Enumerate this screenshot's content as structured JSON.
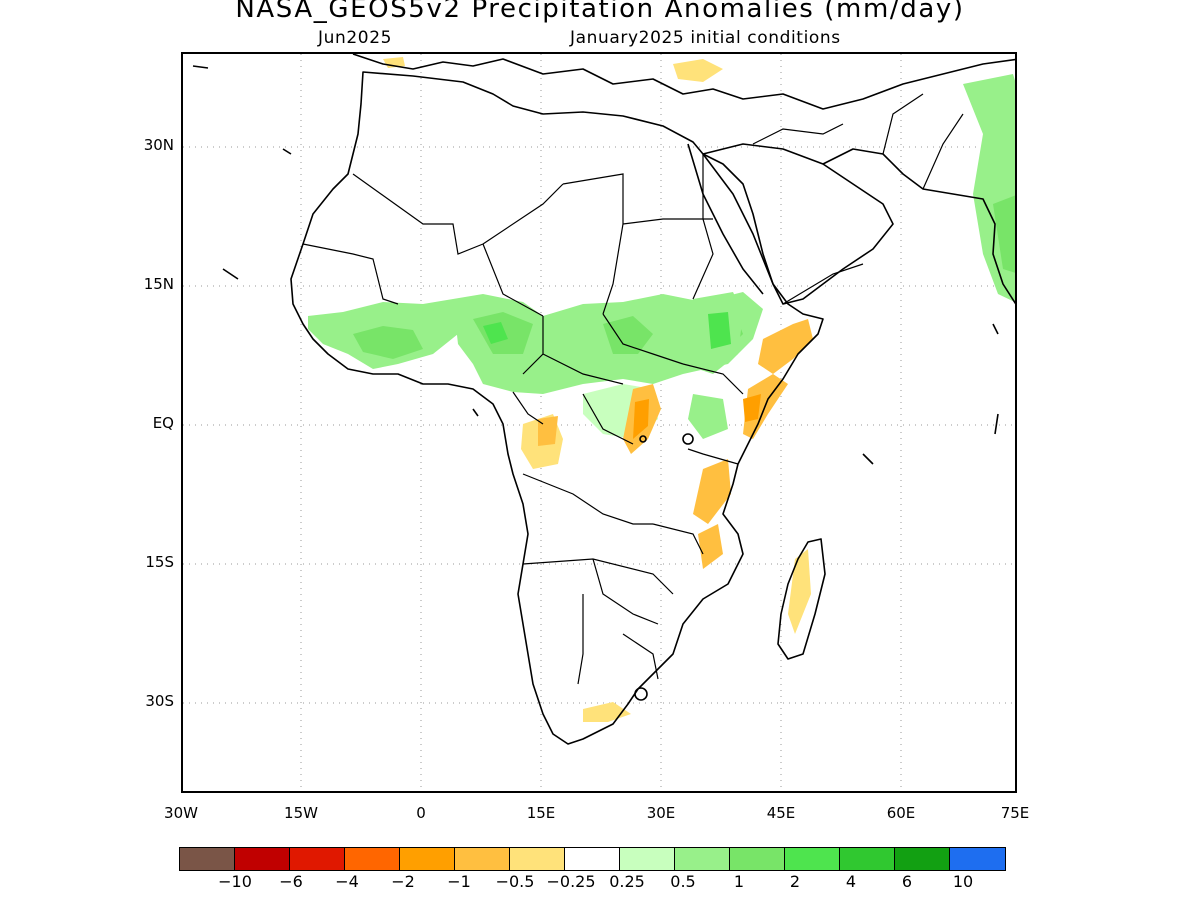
{
  "title": "NASA_GEOS5v2 Precipitation Anomalies (mm/day)",
  "subtitle_left": "Jun2025",
  "subtitle_right": "January2025 initial conditions",
  "lat_labels": [
    "30N",
    "15N",
    "EQ",
    "15S",
    "30S"
  ],
  "lon_labels": [
    "30W",
    "15W",
    "0",
    "15E",
    "30E",
    "45E",
    "60E",
    "75E"
  ],
  "legend": {
    "colors": [
      "#7a5547",
      "#c00000",
      "#e01800",
      "#ff6600",
      "#ff9f00",
      "#ffbf40",
      "#ffe27a",
      "#ffffff",
      "#c8ffbe",
      "#98f08a",
      "#78e468",
      "#4ee44e",
      "#30c830",
      "#12a012",
      "#1e6ef0"
    ],
    "labels": [
      "-10",
      "-6",
      "-4",
      "-2",
      "-1",
      "-0.5",
      "-0.25",
      "0.25",
      "0.5",
      "1",
      "2",
      "4",
      "6",
      "10"
    ]
  },
  "anomaly_areas": [
    {
      "region": "Sahel West",
      "class": "0.5 to 2"
    },
    {
      "region": "Central Sahel / Sudan",
      "class": "0.5 to 2"
    },
    {
      "region": "Ethiopian Highlands",
      "class": "0.5 to 2"
    },
    {
      "region": "Somalia / Horn",
      "class": "-1 to -0.25"
    },
    {
      "region": "East African Rift / Lake Tanganyika",
      "class": "-2 to -0.25"
    },
    {
      "region": "Gabon",
      "class": "-1 to -0.25"
    },
    {
      "region": "Mozambique coast",
      "class": "-1 to -0.25"
    },
    {
      "region": "Madagascar east",
      "class": "-0.5 to -0.25"
    },
    {
      "region": "South Africa south coast",
      "class": "-0.5 to -0.25"
    },
    {
      "region": "Western India",
      "class": "0.5 to 2"
    },
    {
      "region": "Mediterranean (Turkey/Greece)",
      "class": "-0.5 to -0.25"
    }
  ]
}
